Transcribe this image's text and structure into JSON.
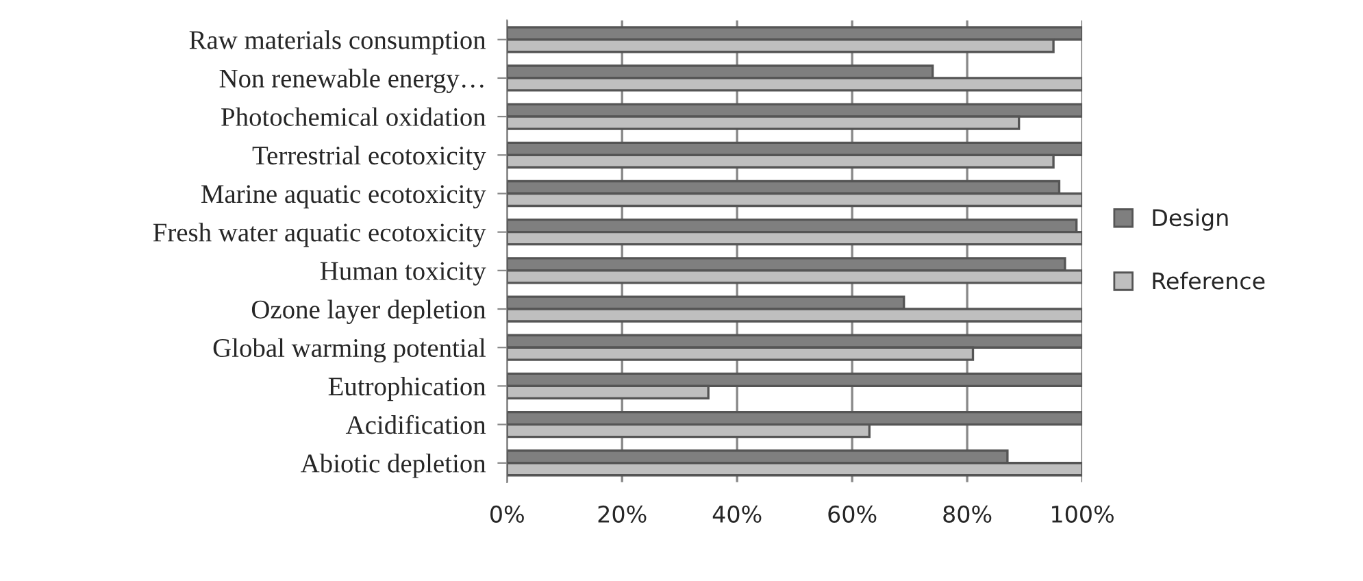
{
  "chart_data": {
    "type": "bar",
    "orientation": "horizontal",
    "categories": [
      "Raw materials consumption",
      "Non renewable energy…",
      "Photochemical oxidation",
      "Terrestrial ecotoxicity",
      "Marine aquatic ecotoxicity",
      "Fresh water aquatic ecotoxicity",
      "Human toxicity",
      "Ozone layer depletion",
      "Global warming potential",
      "Eutrophication",
      "Acidification",
      "Abiotic depletion"
    ],
    "series": [
      {
        "name": "Design",
        "color": "#7f7f7f",
        "values": [
          100,
          74,
          100,
          100,
          96,
          99,
          97,
          69,
          100,
          100,
          100,
          87
        ]
      },
      {
        "name": "Reference",
        "color": "#bfbfbf",
        "values": [
          95,
          100,
          89,
          95,
          100,
          100,
          100,
          100,
          81,
          35,
          63,
          100
        ]
      }
    ],
    "xlim": [
      0,
      100
    ],
    "xticks": [
      {
        "value": 0,
        "label": "0%"
      },
      {
        "value": 20,
        "label": "20%"
      },
      {
        "value": 40,
        "label": "40%"
      },
      {
        "value": 60,
        "label": "60%"
      },
      {
        "value": 80,
        "label": "80%"
      },
      {
        "value": 100,
        "label": "100%"
      }
    ],
    "grid": "x",
    "legend": "right"
  }
}
